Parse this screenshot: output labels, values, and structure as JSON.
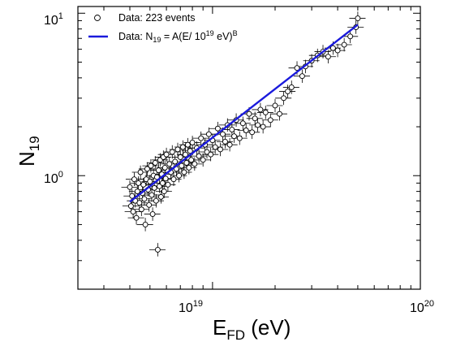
{
  "chart_data": {
    "type": "scatter",
    "title": "",
    "xlabel": {
      "main": "E",
      "sub": "FD",
      "unit": " (eV)"
    },
    "ylabel": {
      "main": "N",
      "sub": "19"
    },
    "x_scale": "log",
    "y_scale": "log",
    "xlim": [
      2.25e+18,
      1e+20
    ],
    "ylim": [
      0.2,
      11.0
    ],
    "x_ticks": [
      {
        "value": 1e+19,
        "base": "10",
        "exp": "19"
      },
      {
        "value": 1e+20,
        "base": "10",
        "exp": "20"
      }
    ],
    "y_ticks": [
      {
        "value": 1,
        "label": "10",
        "sup": "0"
      },
      {
        "value": 10,
        "label": "10",
        "sup": "1"
      }
    ],
    "legend": {
      "position": "top-left",
      "entries": [
        {
          "marker": "open-circle",
          "label": "Data: 223 events"
        },
        {
          "marker": "line",
          "prefix": "Data: N",
          "sub": "19",
          "mid": " = A(E/ 10",
          "sup1": "19",
          "unit": " eV)",
          "sup2": "B"
        }
      ]
    },
    "n_events": 223,
    "series": [
      {
        "name": "Data: 223 events",
        "marker": "open-circle",
        "points": [
          [
            4e+18,
            0.85
          ],
          [
            4.05e+18,
            0.65
          ],
          [
            4.1e+18,
            0.75
          ],
          [
            4.15e+18,
            0.6
          ],
          [
            4.2e+18,
            0.95
          ],
          [
            4.25e+18,
            0.7
          ],
          [
            4.3e+18,
            0.55
          ],
          [
            4.35e+18,
            0.8
          ],
          [
            4.4e+18,
            0.9
          ],
          [
            4.45e+18,
            0.68
          ],
          [
            4.5e+18,
            1.05
          ],
          [
            4.55e+18,
            0.62
          ],
          [
            4.6e+18,
            0.78
          ],
          [
            4.65e+18,
            0.88
          ],
          [
            4.7e+18,
            0.72
          ],
          [
            4.75e+18,
            0.5
          ],
          [
            4.8e+18,
            0.95
          ],
          [
            4.85e+18,
            1.1
          ],
          [
            4.9e+18,
            0.82
          ],
          [
            4.95e+18,
            0.66
          ],
          [
            5e+18,
            0.92
          ],
          [
            5.05e+18,
            1.15
          ],
          [
            5.1e+18,
            0.76
          ],
          [
            5.15e+18,
            0.58
          ],
          [
            5.2e+18,
            1.0
          ],
          [
            5.25e+18,
            0.84
          ],
          [
            5.3e+18,
            1.2
          ],
          [
            5.35e+18,
            0.7
          ],
          [
            5.4e+18,
            0.98
          ],
          [
            5.45e+18,
            0.35
          ],
          [
            5.5e+18,
            1.08
          ],
          [
            5.55e+18,
            0.86
          ],
          [
            5.6e+18,
            1.25
          ],
          [
            5.65e+18,
            0.74
          ],
          [
            5.7e+18,
            1.02
          ],
          [
            5.75e+18,
            0.9
          ],
          [
            5.8e+18,
            1.3
          ],
          [
            5.85e+18,
            0.8
          ],
          [
            5.9e+18,
            1.12
          ],
          [
            5.95e+18,
            0.96
          ],
          [
            6e+18,
            1.35
          ],
          [
            6.1e+18,
            0.88
          ],
          [
            6.2e+18,
            1.18
          ],
          [
            6.3e+18,
            1.05
          ],
          [
            6.4e+18,
            1.4
          ],
          [
            6.5e+18,
            0.95
          ],
          [
            6.6e+18,
            1.22
          ],
          [
            6.7e+18,
            1.1
          ],
          [
            6.8e+18,
            1.45
          ],
          [
            6.9e+18,
            1.0
          ],
          [
            7e+18,
            1.3
          ],
          [
            7.1e+18,
            1.15
          ],
          [
            7.2e+18,
            1.5
          ],
          [
            7.3e+18,
            1.05
          ],
          [
            7.4e+18,
            1.35
          ],
          [
            7.5e+18,
            1.2
          ],
          [
            7.6e+18,
            1.55
          ],
          [
            7.7e+18,
            1.12
          ],
          [
            7.8e+18,
            1.42
          ],
          [
            7.9e+18,
            1.25
          ],
          [
            8e+18,
            1.6
          ],
          [
            8.2e+18,
            1.18
          ],
          [
            8.4e+18,
            1.48
          ],
          [
            8.6e+18,
            1.32
          ],
          [
            8.8e+18,
            1.7
          ],
          [
            9e+18,
            1.25
          ],
          [
            9.2e+18,
            1.55
          ],
          [
            9.4e+18,
            1.4
          ],
          [
            9.6e+18,
            1.8
          ],
          [
            9.8e+18,
            1.35
          ],
          [
            1e+19,
            1.65
          ],
          [
            1.03e+19,
            1.5
          ],
          [
            1.06e+19,
            1.95
          ],
          [
            1.09e+19,
            1.45
          ],
          [
            1.12e+19,
            1.8
          ],
          [
            1.15e+19,
            1.62
          ],
          [
            1.18e+19,
            2.05
          ],
          [
            1.21e+19,
            1.55
          ],
          [
            1.24e+19,
            1.92
          ],
          [
            1.27e+19,
            1.75
          ],
          [
            1.3e+19,
            2.2
          ],
          [
            1.35e+19,
            1.7
          ],
          [
            1.4e+19,
            2.1
          ],
          [
            1.45e+19,
            1.9
          ],
          [
            1.5e+19,
            2.4
          ],
          [
            1.55e+19,
            1.85
          ],
          [
            1.6e+19,
            2.25
          ],
          [
            1.65e+19,
            2.05
          ],
          [
            1.7e+19,
            2.55
          ],
          [
            1.75e+19,
            2.0
          ],
          [
            1.8e+19,
            2.45
          ],
          [
            1.9e+19,
            2.2
          ],
          [
            2e+19,
            2.7
          ],
          [
            2.1e+19,
            2.4
          ],
          [
            2.2e+19,
            3.0
          ],
          [
            2.3e+19,
            3.3
          ],
          [
            2.4e+19,
            3.5
          ],
          [
            2.55e+19,
            4.6
          ],
          [
            2.7e+19,
            4.1
          ],
          [
            2.8e+19,
            4.7
          ],
          [
            3e+19,
            5.1
          ],
          [
            3.2e+19,
            5.5
          ],
          [
            3.4e+19,
            5.8
          ],
          [
            3.6e+19,
            5.4
          ],
          [
            3.8e+19,
            6.1
          ],
          [
            4e+19,
            5.9
          ],
          [
            4.3e+19,
            6.4
          ],
          [
            4.6e+19,
            7.2
          ],
          [
            4.9e+19,
            8.2
          ],
          [
            5e+19,
            9.3
          ]
        ]
      },
      {
        "name": "Data: N19 = A(E/ 10^19 eV)^B",
        "type": "line",
        "x": [
          4e+18,
          5e+19
        ],
        "y": [
          0.69,
          8.5
        ]
      }
    ],
    "colors": {
      "points": "#ffffff",
      "point_edge": "#000000",
      "fit": "#1a1adc",
      "axes": "#000000"
    },
    "grid": false
  }
}
